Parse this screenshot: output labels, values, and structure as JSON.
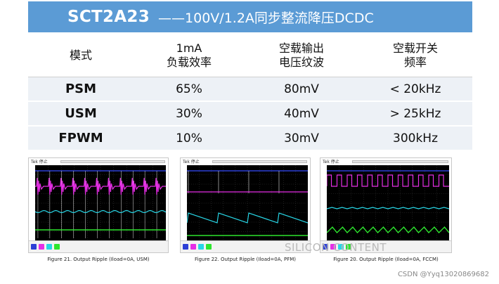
{
  "banner": {
    "chip": "SCT2A23",
    "rest": "——100V/1.2A同步整流降压DCDC"
  },
  "table": {
    "headers": [
      {
        "line1": "模式",
        "line2": ""
      },
      {
        "line1": "1mA",
        "line2": "负载效率"
      },
      {
        "line1": "空载输出",
        "line2": "电压纹波"
      },
      {
        "line1": "空载开关",
        "line2": "频率"
      }
    ],
    "rows": [
      {
        "mode": "PSM",
        "efficiency": "65%",
        "ripple": "80mV",
        "frequency": "< 20kHz"
      },
      {
        "mode": "USM",
        "efficiency": "30%",
        "ripple": "40mV",
        "frequency": "> 25kHz"
      },
      {
        "mode": "FPWM",
        "efficiency": "10%",
        "ripple": "30mV",
        "frequency": "300kHz"
      }
    ]
  },
  "figures": [
    {
      "tek": "Tek 停止",
      "caption": "Figure 21. Output Ripple (Iload=0A, USM)"
    },
    {
      "tek": "Tek 停止",
      "caption": "Figure 22. Output Ripple (Iload=0A, PFM)"
    },
    {
      "tek": "Tek 停止",
      "caption": "Figure 20. Output Ripple (Iload=0A, FCCM)"
    }
  ],
  "channel_colors": {
    "ch1": "#2c3fd6",
    "ch2": "#e62ee6",
    "ch3": "#28d6e6",
    "ch4": "#2ee62e"
  },
  "watermarks": {
    "logo": "SILICON CONTENT",
    "csdn": "CSDN @Yyq13020869682"
  }
}
